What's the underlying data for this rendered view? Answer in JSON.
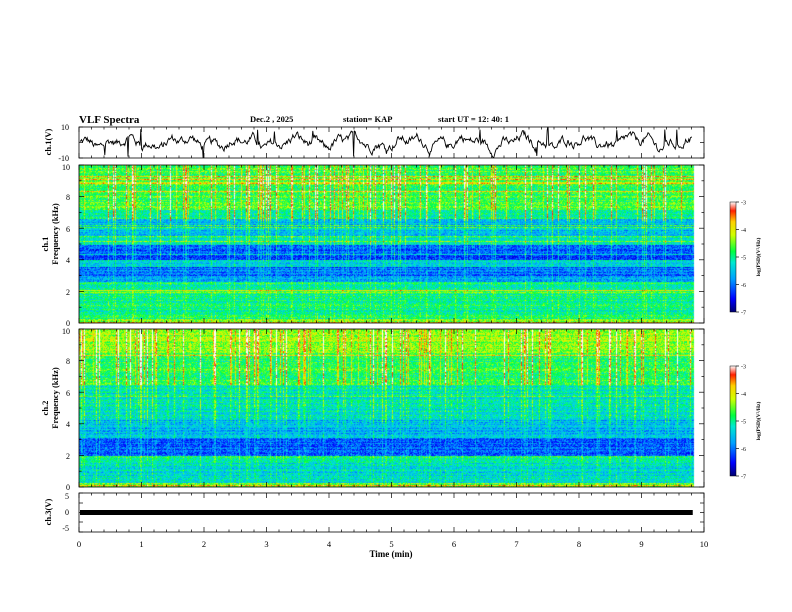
{
  "header": {
    "title": "VLF Spectra",
    "date": "Dec.2 , 2025",
    "station": "station= KAP",
    "start": "start UT = 12: 40: 1"
  },
  "chart_data": {
    "type": "heatmap",
    "x": {
      "label": "Time (min)",
      "range": [
        0,
        10
      ],
      "ticks": [
        "0",
        "1",
        "2",
        "3",
        "4",
        "5",
        "6",
        "7",
        "8",
        "9",
        "10"
      ],
      "data_end": 9.82
    },
    "panels": [
      {
        "id": "ch1-voltage",
        "type": "line",
        "ylabel": "ch.1(V)",
        "ylim": [
          -10,
          10
        ],
        "yticks": [
          "10",
          "-10"
        ]
      },
      {
        "id": "ch1-spectrogram",
        "type": "heatmap",
        "ylabel_top": "ch.1",
        "ylabel": "Frequency (kHz)",
        "ylim": [
          0,
          10
        ],
        "yticks": [
          "0",
          "2",
          "4",
          "6",
          "8",
          "10"
        ],
        "colorbar": {
          "label": "log(PSD)(V²/Hz)",
          "range": [
            -7,
            -3
          ],
          "ticks": [
            "-3",
            "-4",
            "-5",
            "-6",
            "-7"
          ]
        }
      },
      {
        "id": "ch2-spectrogram",
        "type": "heatmap",
        "ylabel_top": "ch.2",
        "ylabel": "Frequency (kHz)",
        "ylim": [
          0,
          10
        ],
        "yticks": [
          "0",
          "2",
          "4",
          "6",
          "8",
          "10"
        ],
        "colorbar": {
          "label": "log(PSD)(V²/Hz)",
          "range": [
            -7,
            -3
          ],
          "ticks": [
            "-3",
            "-4",
            "-5",
            "-6",
            "-7"
          ]
        }
      },
      {
        "id": "ch3-voltage",
        "type": "line",
        "ylabel": "ch.3(V)",
        "ylim": [
          -5,
          5
        ],
        "yticks": [
          "5",
          "0",
          "-5"
        ],
        "level": 0
      }
    ]
  }
}
